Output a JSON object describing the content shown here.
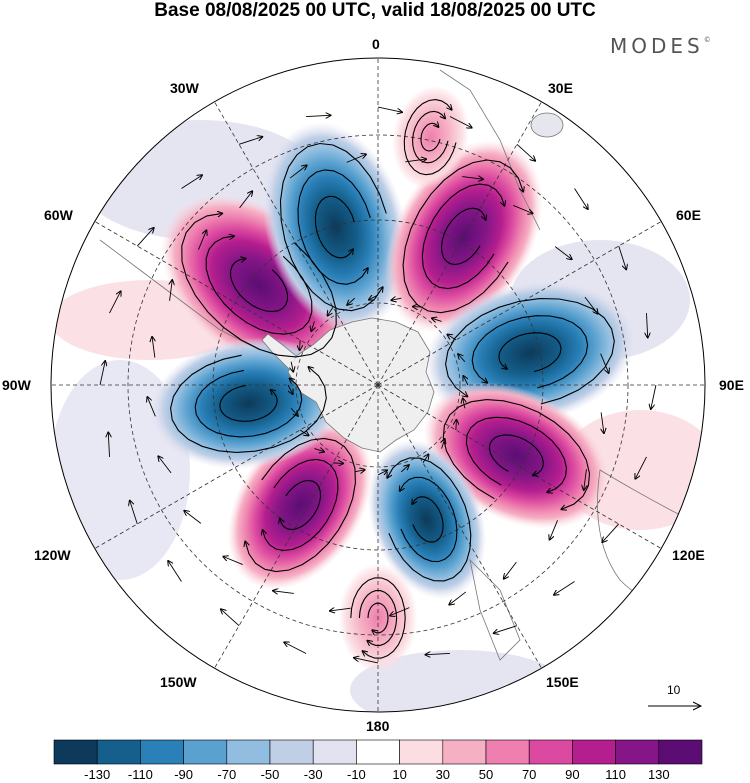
{
  "title": "Base 08/08/2025 00 UTC, valid 18/08/2025 00 UTC",
  "brand": {
    "name": "MODES",
    "mark": "©"
  },
  "longitude_labels": {
    "lon_0": "0",
    "lon_30e": "30E",
    "lon_60e": "60E",
    "lon_90e": "90E",
    "lon_120e": "120E",
    "lon_150e": "150E",
    "lon_180": "180",
    "lon_150w": "150W",
    "lon_120w": "120W",
    "lon_90w": "90W",
    "lon_60w": "60W",
    "lon_30w": "30W"
  },
  "reference_vector": {
    "label": "10"
  },
  "colorbar": {
    "colors": [
      "#0d3a5a",
      "#145f8c",
      "#2a80b8",
      "#5aa1cf",
      "#90bde0",
      "#c0cfe6",
      "#e2e2f1",
      "#ffffff",
      "#fbdde2",
      "#f6b0c4",
      "#ee7fae",
      "#db4aa0",
      "#b41e8e",
      "#861687",
      "#5b0d73"
    ],
    "ticks": [
      "-130",
      "-110",
      "-90",
      "-70",
      "-50",
      "-30",
      "-10",
      "10",
      "30",
      "50",
      "70",
      "90",
      "110",
      "130"
    ]
  },
  "anomaly_centers": [
    {
      "id": "lon-75w-pos",
      "lon": -50,
      "lat": -52,
      "value": 150
    },
    {
      "id": "lon-10w-neg",
      "lon": -15,
      "lat": -50,
      "value": -140
    },
    {
      "id": "lon-35e-pos",
      "lon": 30,
      "lat": -48,
      "value": 135
    },
    {
      "id": "lon-80e-neg",
      "lon": 78,
      "lat": -52,
      "value": -140
    },
    {
      "id": "lon-130e-pos",
      "lon": 117,
      "lat": -52,
      "value": 125
    },
    {
      "id": "lon-170e-neg",
      "lon": 160,
      "lat": -55,
      "value": -95
    },
    {
      "id": "lon-145w-pos",
      "lon": -147,
      "lat": -55,
      "value": 115
    },
    {
      "id": "lon-105w-neg",
      "lon": -98,
      "lat": -58,
      "value": -125
    },
    {
      "id": "lon-180-pos",
      "lon": 180,
      "lat": -33,
      "value": 45
    },
    {
      "id": "lon-20e-pos",
      "lon": 12,
      "lat": -28,
      "value": 40
    }
  ]
}
